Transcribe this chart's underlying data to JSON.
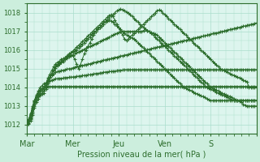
{
  "title": "",
  "xlabel": "Pression niveau de la mer( hPa )",
  "ylabel": "",
  "bg_color": "#cceedd",
  "plot_bg_color": "#ddf5ee",
  "line_color": "#2d6e2d",
  "grid_color": "#aaddcc",
  "tick_label_color": "#2d6e2d",
  "label_color": "#2d6e2d",
  "ylim": [
    1011.5,
    1018.5
  ],
  "day_positions": [
    0,
    24,
    48,
    72,
    96,
    120
  ],
  "day_labels": [
    "Mar",
    "Mer",
    "Jeu",
    "Ven",
    "S",
    ""
  ],
  "yticks": [
    1012,
    1013,
    1014,
    1015,
    1016,
    1017,
    1018
  ],
  "series": [
    [
      1012.0,
      1012.2,
      1012.5,
      1013.0,
      1013.3,
      1013.5,
      1013.7,
      1013.8,
      1013.9,
      1014.0,
      1014.05,
      1014.05,
      1014.05,
      1014.05,
      1014.05,
      1014.05,
      1014.05,
      1014.05,
      1014.05,
      1014.05,
      1014.05,
      1014.05,
      1014.05,
      1014.05,
      1014.05,
      1014.05,
      1014.05,
      1014.05,
      1014.05,
      1014.05,
      1014.05,
      1014.05,
      1014.05,
      1014.05,
      1014.05,
      1014.05,
      1014.05,
      1014.05,
      1014.05,
      1014.05,
      1014.05,
      1014.05,
      1014.05,
      1014.05,
      1014.05,
      1014.05,
      1014.05,
      1014.05,
      1014.05,
      1014.05,
      1014.05,
      1014.05,
      1014.05,
      1014.05,
      1014.05,
      1014.05,
      1014.05,
      1014.05,
      1014.05,
      1014.05,
      1014.05,
      1014.05,
      1014.05,
      1014.05,
      1014.05,
      1014.05,
      1014.05,
      1014.05,
      1014.05,
      1014.05,
      1014.05,
      1014.05,
      1014.05,
      1014.05,
      1014.05,
      1014.05,
      1014.05,
      1014.05,
      1014.05,
      1014.05,
      1014.05,
      1014.05,
      1014.05,
      1014.05,
      1014.05,
      1014.05,
      1014.05,
      1014.05,
      1014.05,
      1014.05,
      1014.05,
      1014.05,
      1014.05,
      1014.05,
      1014.05,
      1014.05,
      1014.05,
      1014.05,
      1014.05,
      1014.05,
      1014.05,
      1014.05,
      1014.05,
      1014.05,
      1014.05,
      1014.05,
      1014.05,
      1014.05,
      1014.05,
      1014.05,
      1014.05,
      1014.05,
      1014.05,
      1014.05,
      1014.05,
      1014.05,
      1014.05,
      1014.05,
      1014.05,
      1014.05,
      1014.05
    ],
    [
      1012.1,
      1012.3,
      1012.6,
      1012.9,
      1013.3,
      1013.6,
      1013.8,
      1014.0,
      1014.1,
      1014.2,
      1014.25,
      1014.3,
      1014.35,
      1014.4,
      1014.42,
      1014.45,
      1014.47,
      1014.48,
      1014.49,
      1014.5,
      1014.52,
      1014.53,
      1014.54,
      1014.55,
      1014.56,
      1014.57,
      1014.58,
      1014.6,
      1014.62,
      1014.63,
      1014.64,
      1014.65,
      1014.67,
      1014.68,
      1014.7,
      1014.72,
      1014.74,
      1014.75,
      1014.77,
      1014.78,
      1014.8,
      1014.82,
      1014.83,
      1014.85,
      1014.86,
      1014.87,
      1014.88,
      1014.9,
      1014.91,
      1014.92,
      1014.93,
      1014.94,
      1014.95,
      1014.95,
      1014.95,
      1014.95,
      1014.95,
      1014.95,
      1014.95,
      1014.95,
      1014.95,
      1014.95,
      1014.95,
      1014.95,
      1014.95,
      1014.95,
      1014.95,
      1014.95,
      1014.95,
      1014.95,
      1014.95,
      1014.95,
      1014.95,
      1014.95,
      1014.95,
      1014.95,
      1014.95,
      1014.95,
      1014.95,
      1014.95,
      1014.95,
      1014.95,
      1014.95,
      1014.95,
      1014.95,
      1014.95,
      1014.95,
      1014.95,
      1014.95,
      1014.95,
      1014.95,
      1014.95,
      1014.95,
      1014.95,
      1014.95,
      1014.95,
      1014.95,
      1014.95,
      1014.95,
      1014.95,
      1014.95,
      1014.95,
      1014.95,
      1014.95,
      1014.95,
      1014.95,
      1014.95,
      1014.95,
      1014.95,
      1014.95,
      1014.95,
      1014.95,
      1014.95,
      1014.95,
      1014.95,
      1014.95,
      1014.95,
      1014.95,
      1014.95,
      1014.95,
      1014.95
    ],
    [
      1012.0,
      1012.15,
      1012.4,
      1012.8,
      1013.2,
      1013.5,
      1013.7,
      1013.85,
      1013.95,
      1014.0,
      1014.2,
      1014.4,
      1014.55,
      1014.65,
      1014.75,
      1014.8,
      1014.85,
      1014.87,
      1014.9,
      1014.92,
      1014.95,
      1014.97,
      1015.0,
      1015.0,
      1015.05,
      1015.08,
      1015.1,
      1015.12,
      1015.15,
      1015.18,
      1015.2,
      1015.22,
      1015.25,
      1015.27,
      1015.3,
      1015.32,
      1015.35,
      1015.38,
      1015.4,
      1015.43,
      1015.45,
      1015.48,
      1015.5,
      1015.52,
      1015.55,
      1015.57,
      1015.6,
      1015.62,
      1015.65,
      1015.68,
      1015.7,
      1015.72,
      1015.75,
      1015.77,
      1015.8,
      1015.82,
      1015.85,
      1015.88,
      1015.9,
      1015.92,
      1015.95,
      1015.97,
      1016.0,
      1016.02,
      1016.05,
      1016.08,
      1016.1,
      1016.12,
      1016.15,
      1016.18,
      1016.2,
      1016.22,
      1016.25,
      1016.27,
      1016.3,
      1016.32,
      1016.35,
      1016.38,
      1016.4,
      1016.43,
      1016.45,
      1016.48,
      1016.5,
      1016.52,
      1016.55,
      1016.57,
      1016.6,
      1016.62,
      1016.65,
      1016.68,
      1016.7,
      1016.72,
      1016.75,
      1016.77,
      1016.8,
      1016.82,
      1016.85,
      1016.88,
      1016.9,
      1016.92,
      1016.95,
      1016.97,
      1017.0,
      1017.02,
      1017.05,
      1017.08,
      1017.1,
      1017.12,
      1017.15,
      1017.18,
      1017.2,
      1017.22,
      1017.25,
      1017.28,
      1017.3,
      1017.32,
      1017.35,
      1017.38,
      1017.4,
      1017.42,
      1017.45
    ],
    [
      1012.2,
      1012.3,
      1012.55,
      1012.9,
      1013.25,
      1013.5,
      1013.65,
      1013.8,
      1013.9,
      1014.0,
      1014.2,
      1014.5,
      1014.7,
      1014.9,
      1015.1,
      1015.25,
      1015.35,
      1015.4,
      1015.5,
      1015.55,
      1015.6,
      1015.7,
      1015.8,
      1015.85,
      1015.9,
      1015.95,
      1016.0,
      1016.1,
      1016.2,
      1016.3,
      1016.4,
      1016.5,
      1016.6,
      1016.7,
      1016.8,
      1016.9,
      1017.0,
      1017.1,
      1017.2,
      1017.3,
      1017.4,
      1017.5,
      1017.6,
      1017.7,
      1017.8,
      1017.9,
      1018.0,
      1018.1,
      1018.15,
      1018.2,
      1018.15,
      1018.1,
      1018.05,
      1018.0,
      1017.9,
      1017.8,
      1017.7,
      1017.6,
      1017.5,
      1017.4,
      1017.3,
      1017.2,
      1017.1,
      1017.05,
      1017.0,
      1016.95,
      1016.9,
      1016.85,
      1016.8,
      1016.7,
      1016.6,
      1016.5,
      1016.4,
      1016.3,
      1016.2,
      1016.1,
      1016.0,
      1015.9,
      1015.8,
      1015.7,
      1015.6,
      1015.5,
      1015.4,
      1015.3,
      1015.2,
      1015.1,
      1015.0,
      1014.9,
      1014.8,
      1014.7,
      1014.6,
      1014.5,
      1014.4,
      1014.3,
      1014.2,
      1014.1,
      1014.0,
      1013.95,
      1013.9,
      1013.85,
      1013.8,
      1013.75,
      1013.7,
      1013.65,
      1013.6,
      1013.55,
      1013.5,
      1013.45,
      1013.4,
      1013.35,
      1013.3,
      1013.25,
      1013.2,
      1013.1,
      1013.05,
      1013.0,
      1013.0,
      1013.0,
      1013.0,
      1013.0,
      1013.0
    ],
    [
      1012.0,
      1012.1,
      1012.3,
      1012.6,
      1013.0,
      1013.3,
      1013.5,
      1013.6,
      1013.7,
      1013.8,
      1013.9,
      1014.2,
      1014.5,
      1014.7,
      1014.9,
      1015.1,
      1015.25,
      1015.3,
      1015.4,
      1015.45,
      1015.5,
      1015.6,
      1015.7,
      1015.75,
      1015.7,
      1015.5,
      1015.25,
      1015.0,
      1015.2,
      1015.5,
      1015.8,
      1016.0,
      1016.2,
      1016.4,
      1016.6,
      1016.8,
      1017.0,
      1017.1,
      1017.2,
      1017.3,
      1017.4,
      1017.5,
      1017.55,
      1017.6,
      1017.55,
      1017.5,
      1017.4,
      1017.3,
      1017.2,
      1017.1,
      1017.0,
      1016.9,
      1016.8,
      1016.75,
      1016.7,
      1016.65,
      1016.6,
      1016.5,
      1016.4,
      1016.3,
      1016.2,
      1016.1,
      1016.0,
      1015.9,
      1015.8,
      1015.7,
      1015.6,
      1015.5,
      1015.4,
      1015.3,
      1015.2,
      1015.1,
      1015.0,
      1014.9,
      1014.8,
      1014.7,
      1014.6,
      1014.5,
      1014.4,
      1014.3,
      1014.2,
      1014.1,
      1014.0,
      1013.95,
      1013.9,
      1013.85,
      1013.8,
      1013.75,
      1013.7,
      1013.65,
      1013.6,
      1013.55,
      1013.5,
      1013.45,
      1013.4,
      1013.35,
      1013.3,
      1013.3,
      1013.3,
      1013.3,
      1013.3,
      1013.3,
      1013.3,
      1013.3,
      1013.3,
      1013.3,
      1013.3,
      1013.3,
      1013.3,
      1013.3,
      1013.3,
      1013.3,
      1013.3,
      1013.3,
      1013.3,
      1013.3,
      1013.3,
      1013.3,
      1013.3,
      1013.3,
      1013.3
    ],
    [
      1012.1,
      1012.2,
      1012.35,
      1012.7,
      1013.1,
      1013.4,
      1013.55,
      1013.7,
      1013.8,
      1013.9,
      1014.1,
      1014.35,
      1014.55,
      1014.75,
      1014.95,
      1015.1,
      1015.2,
      1015.3,
      1015.35,
      1015.4,
      1015.5,
      1015.55,
      1015.65,
      1015.7,
      1015.75,
      1015.8,
      1015.85,
      1015.9,
      1015.95,
      1016.0,
      1016.05,
      1016.1,
      1016.15,
      1016.2,
      1016.25,
      1016.3,
      1016.35,
      1016.4,
      1016.45,
      1016.5,
      1016.55,
      1016.6,
      1016.65,
      1016.7,
      1016.75,
      1016.8,
      1016.85,
      1016.9,
      1016.95,
      1017.0,
      1017.0,
      1017.0,
      1017.0,
      1017.0,
      1017.0,
      1017.0,
      1017.0,
      1017.0,
      1017.0,
      1017.0,
      1017.0,
      1017.05,
      1017.1,
      1017.05,
      1017.0,
      1016.9,
      1016.8,
      1016.7,
      1016.6,
      1016.5,
      1016.4,
      1016.3,
      1016.2,
      1016.1,
      1016.0,
      1015.9,
      1015.8,
      1015.7,
      1015.6,
      1015.5,
      1015.4,
      1015.3,
      1015.2,
      1015.1,
      1015.0,
      1014.9,
      1014.8,
      1014.7,
      1014.6,
      1014.5,
      1014.4,
      1014.3,
      1014.2,
      1014.1,
      1014.0,
      1013.95,
      1013.9,
      1013.85,
      1013.8,
      1013.75,
      1013.7,
      1013.65,
      1013.6,
      1013.55,
      1013.5,
      1013.45,
      1013.4,
      1013.35,
      1013.3,
      1013.3,
      1013.3,
      1013.3,
      1013.3,
      1013.3,
      1013.3,
      1013.3,
      1013.3,
      1013.3,
      1013.3,
      1013.3,
      1013.3
    ],
    [
      1012.0,
      1012.05,
      1012.2,
      1012.5,
      1012.9,
      1013.2,
      1013.4,
      1013.55,
      1013.65,
      1013.7,
      1014.0,
      1014.3,
      1014.5,
      1014.7,
      1014.9,
      1015.05,
      1015.15,
      1015.25,
      1015.35,
      1015.45,
      1015.55,
      1015.65,
      1015.75,
      1015.85,
      1015.95,
      1016.05,
      1016.15,
      1016.25,
      1016.35,
      1016.45,
      1016.55,
      1016.65,
      1016.75,
      1016.85,
      1016.95,
      1017.05,
      1017.15,
      1017.25,
      1017.35,
      1017.45,
      1017.55,
      1017.65,
      1017.75,
      1017.85,
      1017.9,
      1017.8,
      1017.6,
      1017.4,
      1017.2,
      1017.0,
      1016.8,
      1016.6,
      1016.5,
      1016.6,
      1016.7,
      1016.8,
      1016.9,
      1017.0,
      1017.1,
      1017.2,
      1017.3,
      1017.4,
      1017.5,
      1017.6,
      1017.7,
      1017.8,
      1017.9,
      1018.0,
      1018.1,
      1018.15,
      1018.1,
      1018.0,
      1017.9,
      1017.8,
      1017.7,
      1017.6,
      1017.5,
      1017.4,
      1017.3,
      1017.2,
      1017.1,
      1017.0,
      1016.9,
      1016.8,
      1016.7,
      1016.6,
      1016.5,
      1016.4,
      1016.3,
      1016.2,
      1016.1,
      1016.0,
      1015.9,
      1015.8,
      1015.7,
      1015.6,
      1015.5,
      1015.4,
      1015.3,
      1015.2,
      1015.1,
      1015.0,
      1014.95,
      1014.9,
      1014.85,
      1014.8,
      1014.75,
      1014.7,
      1014.65,
      1014.6,
      1014.55,
      1014.5,
      1014.45,
      1014.4,
      1014.35,
      1014.3,
      1014.0,
      1014.0,
      1014.0,
      1014.0,
      1014.0,
      1014.0
    ]
  ]
}
